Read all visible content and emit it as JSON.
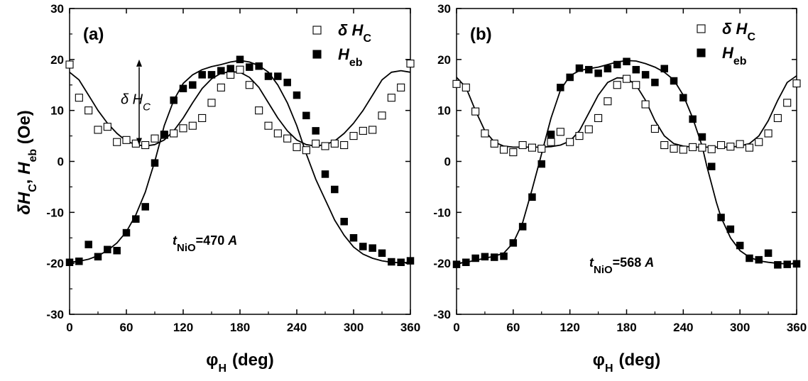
{
  "chart_data": [
    {
      "type": "scatter",
      "panel_label": "(a)",
      "xlabel": "φH (deg)",
      "xlabel_main": "φ",
      "xlabel_sub": "H",
      "xlabel_unit": "(deg)",
      "ylabel": "δHC, Heb (Oe)",
      "ylabel_parts": [
        "δ",
        "H",
        "C",
        ", ",
        "H",
        "eb",
        " (Oe)"
      ],
      "xlim": [
        0,
        360
      ],
      "ylim": [
        -30,
        30
      ],
      "xticks": [
        "0",
        "60",
        "120",
        "180",
        "240",
        "300",
        "360"
      ],
      "yticks": [
        "-30",
        "-20",
        "-10",
        "0",
        "10",
        "20",
        "30"
      ],
      "legend": [
        {
          "symbol": "open-square",
          "main": "δ H",
          "sub": "C"
        },
        {
          "symbol": "filled-square",
          "main": "H",
          "sub": "eb"
        }
      ],
      "annotation": {
        "prefix": "t",
        "sub": "NiO",
        "value": "=470 ",
        "unit": "A"
      },
      "arrow_label": {
        "main": "δ H",
        "sub": "C"
      },
      "series": [
        {
          "name": "δHC",
          "marker": "open-square",
          "x": [
            0,
            10,
            20,
            30,
            40,
            50,
            60,
            70,
            80,
            90,
            100,
            110,
            120,
            130,
            140,
            150,
            160,
            170,
            180,
            190,
            200,
            210,
            220,
            230,
            240,
            250,
            260,
            270,
            280,
            290,
            300,
            310,
            320,
            330,
            340,
            350,
            360
          ],
          "y": [
            19.0,
            12.5,
            10.0,
            6.2,
            6.8,
            3.8,
            4.2,
            3.5,
            3.2,
            4.5,
            5.2,
            5.5,
            6.5,
            7.0,
            8.5,
            11.5,
            14.5,
            17.0,
            18.0,
            15.0,
            10.0,
            7.0,
            5.5,
            4.5,
            2.8,
            2.2,
            3.5,
            3.0,
            3.5,
            3.2,
            5.0,
            6.0,
            6.2,
            9.0,
            12.5,
            14.5,
            19.2
          ]
        },
        {
          "name": "Heb",
          "marker": "filled-square",
          "x": [
            0,
            10,
            20,
            30,
            40,
            50,
            60,
            70,
            80,
            90,
            100,
            110,
            120,
            130,
            140,
            150,
            160,
            170,
            180,
            190,
            200,
            210,
            220,
            230,
            240,
            250,
            260,
            270,
            280,
            290,
            300,
            310,
            320,
            330,
            340,
            350,
            360
          ],
          "y": [
            -19.8,
            -19.6,
            -16.3,
            -18.7,
            -17.3,
            -17.5,
            -14.0,
            -11.3,
            -8.9,
            -0.3,
            5.3,
            12.0,
            14.3,
            15.0,
            17.0,
            17.0,
            17.8,
            18.2,
            20.0,
            18.5,
            18.7,
            16.7,
            16.7,
            15.5,
            13.0,
            9.0,
            6.0,
            -2.5,
            -5.5,
            -11.8,
            -15.0,
            -16.7,
            -17.0,
            -18.0,
            -19.7,
            -19.8,
            -19.5
          ]
        }
      ],
      "fits": [
        {
          "name": "δHC fit",
          "x": [
            0,
            10,
            20,
            30,
            40,
            50,
            60,
            70,
            80,
            90,
            100,
            110,
            120,
            130,
            140,
            150,
            160,
            170,
            180,
            190,
            200,
            210,
            220,
            230,
            240,
            250,
            260,
            270,
            280,
            290,
            300,
            310,
            320,
            330,
            340,
            350,
            360
          ],
          "y": [
            17.5,
            16.0,
            13.0,
            10.0,
            7.5,
            5.5,
            4.0,
            3.3,
            3.0,
            3.3,
            4.2,
            6.0,
            8.5,
            11.5,
            14.3,
            16.2,
            17.3,
            17.6,
            17.5,
            16.5,
            14.5,
            11.5,
            8.5,
            6.0,
            4.2,
            3.3,
            3.0,
            3.3,
            4.0,
            5.5,
            7.5,
            10.0,
            13.0,
            16.0,
            17.5,
            17.8,
            17.5
          ]
        },
        {
          "name": "Heb fit",
          "x": [
            0,
            10,
            20,
            30,
            40,
            50,
            60,
            70,
            80,
            85,
            90,
            95,
            100,
            110,
            120,
            130,
            140,
            150,
            160,
            170,
            180,
            190,
            200,
            210,
            220,
            230,
            240,
            250,
            260,
            265,
            270,
            275,
            280,
            290,
            300,
            310,
            320,
            330,
            340,
            350,
            360
          ],
          "y": [
            -19.8,
            -19.6,
            -19.2,
            -18.5,
            -17.5,
            -16.0,
            -13.8,
            -10.5,
            -6.0,
            -3.0,
            0.0,
            3.5,
            7.0,
            12.0,
            15.3,
            17.0,
            18.0,
            18.6,
            19.0,
            19.5,
            19.8,
            19.5,
            18.8,
            17.5,
            15.0,
            11.5,
            7.0,
            1.5,
            -3.5,
            -5.5,
            -7.5,
            -9.5,
            -11.5,
            -14.5,
            -16.8,
            -18.2,
            -19.0,
            -19.5,
            -19.8,
            -19.9,
            -19.8
          ]
        }
      ]
    },
    {
      "type": "scatter",
      "panel_label": "(b)",
      "xlabel": "φH (deg)",
      "xlabel_main": "φ",
      "xlabel_sub": "H",
      "xlabel_unit": "(deg)",
      "ylabel": "",
      "xlim": [
        0,
        360
      ],
      "ylim": [
        -30,
        30
      ],
      "xticks": [
        "0",
        "60",
        "120",
        "180",
        "240",
        "300",
        "360"
      ],
      "yticks": [
        "-30",
        "-20",
        "-10",
        "0",
        "10",
        "20",
        "30"
      ],
      "legend": [
        {
          "symbol": "open-square",
          "main": "δ H",
          "sub": "C"
        },
        {
          "symbol": "filled-square",
          "main": "H",
          "sub": "eb"
        }
      ],
      "annotation": {
        "prefix": "t",
        "sub": "NiO",
        "value": "=568 ",
        "unit": "A"
      },
      "series": [
        {
          "name": "δHC",
          "marker": "open-square",
          "x": [
            0,
            10,
            20,
            30,
            40,
            50,
            60,
            70,
            80,
            90,
            100,
            110,
            120,
            130,
            140,
            150,
            160,
            170,
            180,
            190,
            200,
            210,
            220,
            230,
            240,
            250,
            260,
            270,
            280,
            290,
            300,
            310,
            320,
            330,
            340,
            350,
            360
          ],
          "y": [
            15.2,
            14.5,
            9.8,
            5.5,
            3.5,
            2.3,
            1.8,
            3.2,
            2.7,
            2.5,
            3.8,
            5.8,
            3.8,
            5.0,
            6.3,
            8.5,
            11.8,
            15.0,
            16.2,
            15.0,
            11.2,
            6.4,
            3.2,
            2.5,
            2.3,
            2.8,
            2.7,
            2.4,
            3.2,
            2.9,
            3.4,
            2.7,
            3.8,
            5.5,
            8.5,
            11.5,
            15.3
          ]
        },
        {
          "name": "Heb",
          "marker": "filled-square",
          "x": [
            0,
            10,
            20,
            30,
            40,
            50,
            60,
            70,
            80,
            90,
            100,
            110,
            120,
            130,
            140,
            150,
            160,
            170,
            180,
            190,
            200,
            210,
            220,
            230,
            240,
            250,
            260,
            270,
            280,
            290,
            300,
            310,
            320,
            330,
            340,
            350,
            360
          ],
          "y": [
            -20.2,
            -19.8,
            -19.0,
            -18.7,
            -18.8,
            -18.6,
            -16.0,
            -12.8,
            -7.0,
            -0.5,
            5.3,
            14.5,
            16.5,
            18.3,
            18.0,
            17.3,
            18.2,
            19.0,
            19.6,
            18.0,
            17.0,
            15.5,
            18.2,
            15.8,
            12.5,
            8.3,
            4.8,
            -1.0,
            -11.0,
            -13.3,
            -16.5,
            -19.0,
            -19.3,
            -18.0,
            -20.3,
            -20.2,
            -20.1
          ]
        }
      ],
      "fits": [
        {
          "name": "δHC fit",
          "x": [
            0,
            10,
            20,
            30,
            40,
            50,
            60,
            70,
            80,
            90,
            100,
            110,
            120,
            130,
            140,
            150,
            160,
            170,
            180,
            190,
            200,
            210,
            220,
            230,
            240,
            250,
            260,
            270,
            280,
            290,
            300,
            310,
            320,
            330,
            340,
            350,
            360
          ],
          "y": [
            16.5,
            14.5,
            10.0,
            6.0,
            3.8,
            3.0,
            2.8,
            2.8,
            2.8,
            2.8,
            2.9,
            3.2,
            4.0,
            6.0,
            9.5,
            13.0,
            15.5,
            16.4,
            16.3,
            15.0,
            12.0,
            8.0,
            5.0,
            3.5,
            3.0,
            2.8,
            2.8,
            2.8,
            2.8,
            2.8,
            3.0,
            3.5,
            5.0,
            8.0,
            12.0,
            15.5,
            16.8
          ]
        },
        {
          "name": "Heb fit",
          "x": [
            0,
            10,
            20,
            30,
            40,
            50,
            60,
            70,
            80,
            85,
            90,
            95,
            100,
            110,
            120,
            130,
            140,
            150,
            160,
            170,
            180,
            190,
            200,
            210,
            220,
            230,
            240,
            250,
            260,
            265,
            270,
            275,
            280,
            290,
            300,
            310,
            320,
            330,
            340,
            350,
            360
          ],
          "y": [
            -20.0,
            -19.8,
            -19.4,
            -19.0,
            -18.6,
            -18.0,
            -16.0,
            -12.0,
            -5.5,
            -2.0,
            1.5,
            5.0,
            8.5,
            14.0,
            16.8,
            17.8,
            18.2,
            18.5,
            19.0,
            19.5,
            19.8,
            19.7,
            19.2,
            18.5,
            17.5,
            16.0,
            13.0,
            8.5,
            3.0,
            -1.0,
            -4.5,
            -8.0,
            -11.0,
            -15.0,
            -17.5,
            -18.8,
            -19.5,
            -19.8,
            -20.0,
            -20.1,
            -20.1
          ]
        }
      ]
    }
  ]
}
